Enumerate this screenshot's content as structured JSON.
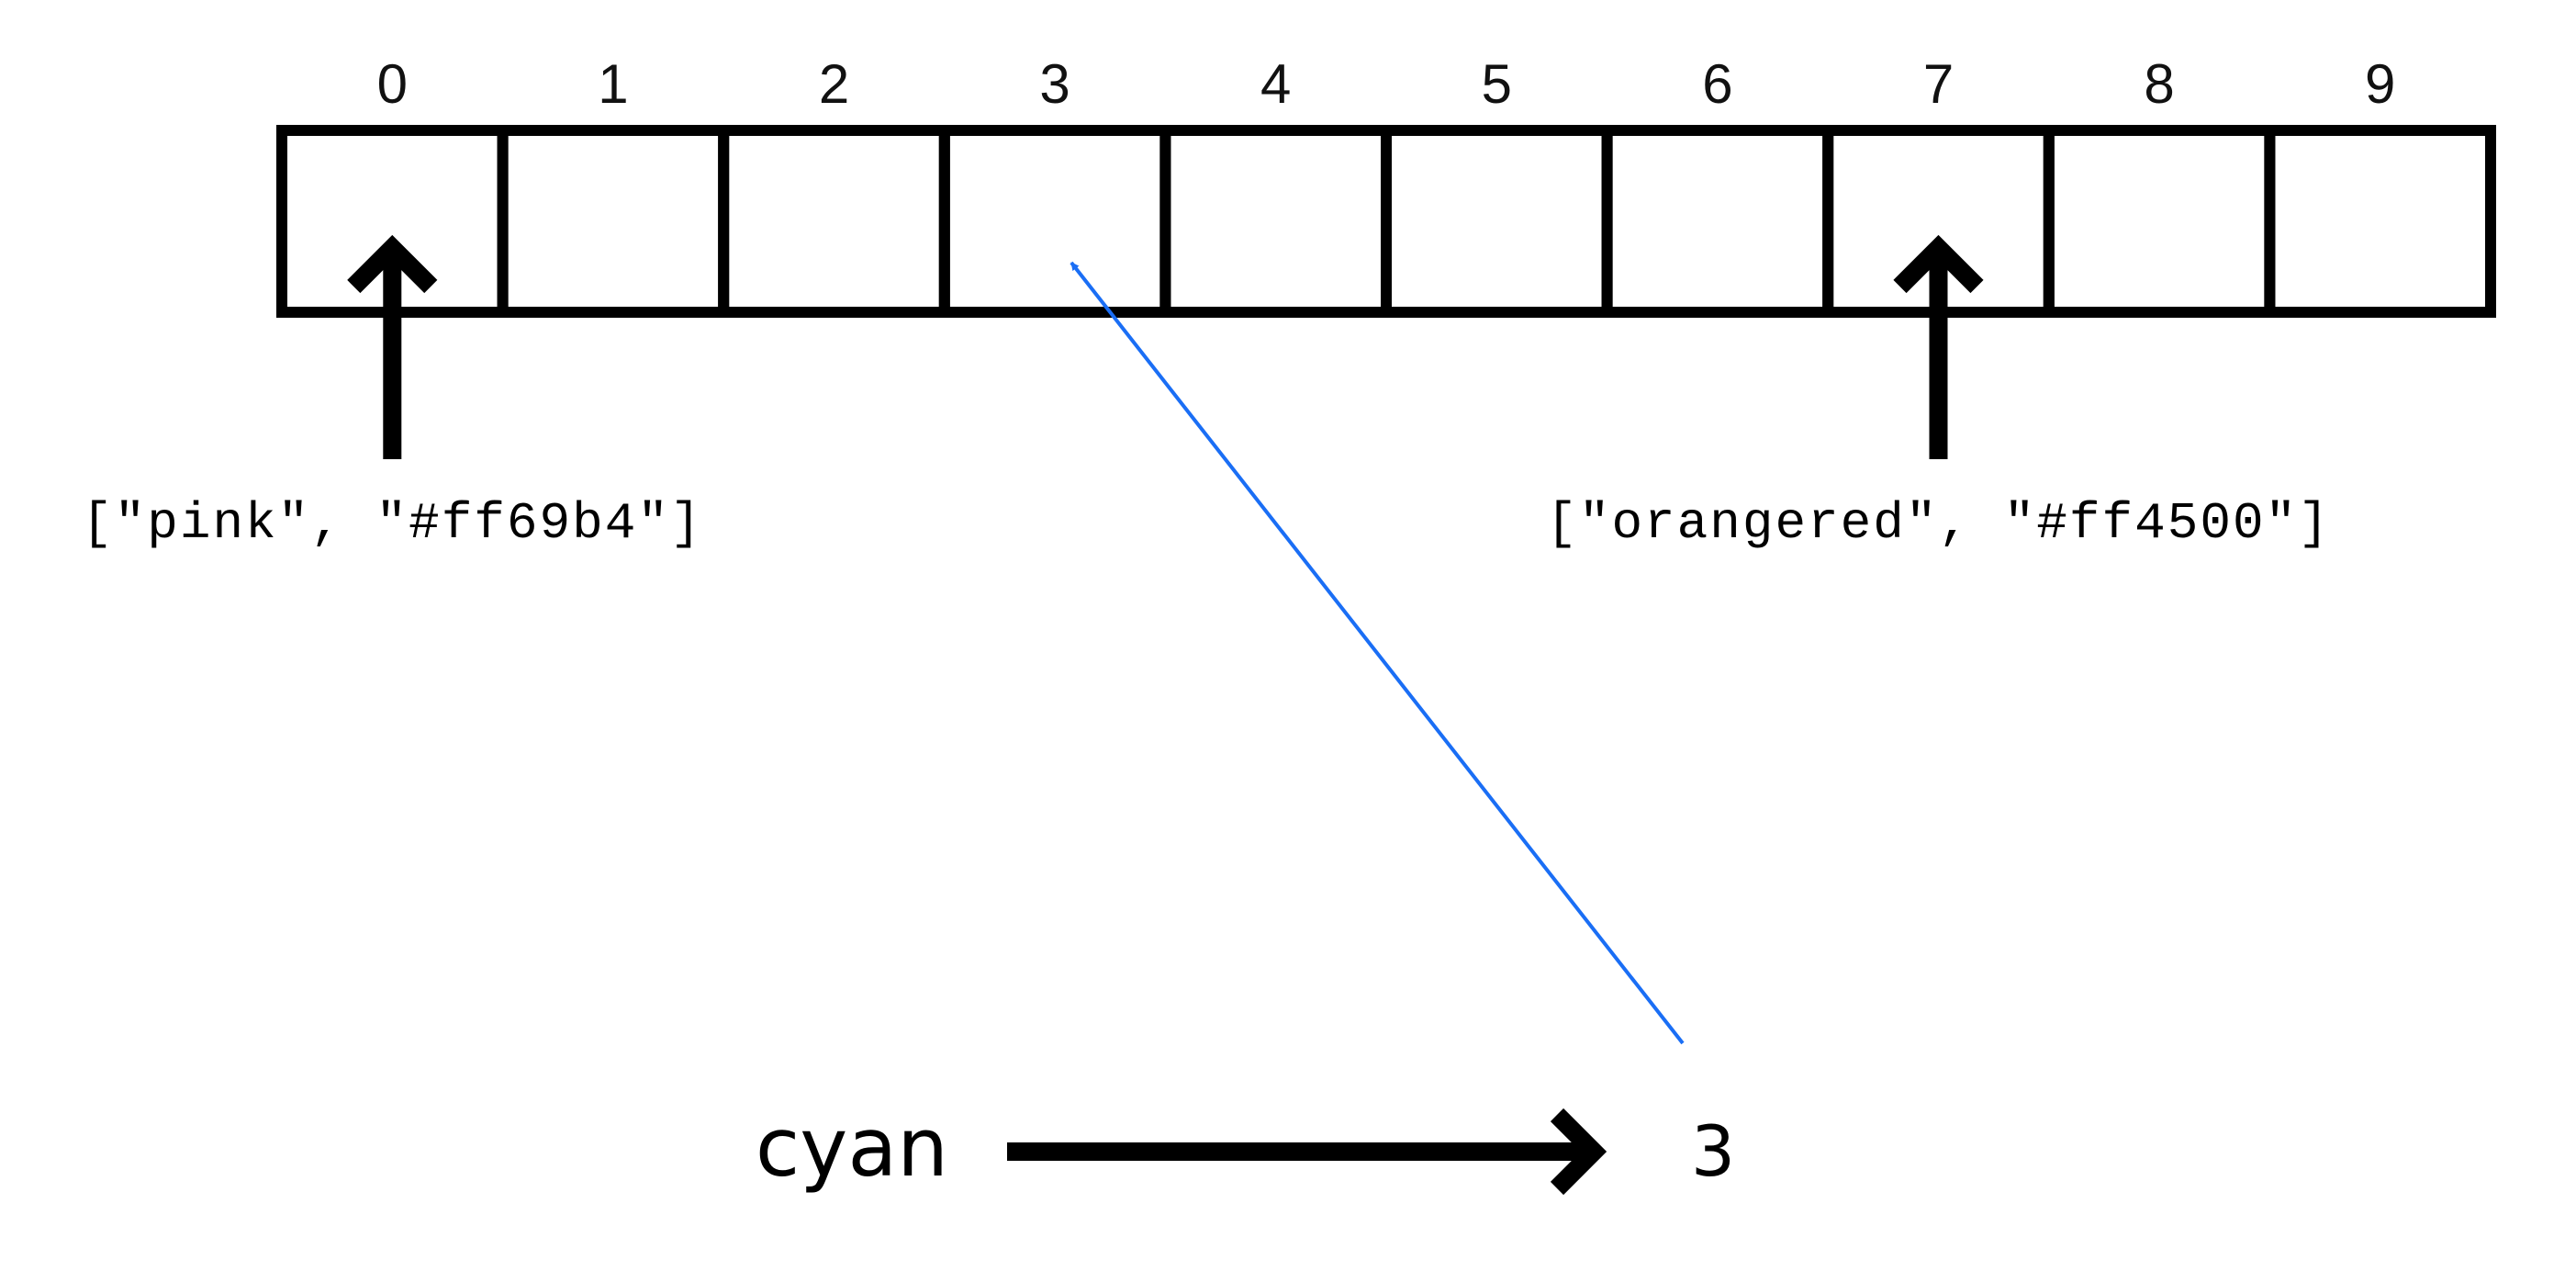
{
  "array": {
    "indices": [
      "0",
      "1",
      "2",
      "3",
      "4",
      "5",
      "6",
      "7",
      "8",
      "9"
    ]
  },
  "pointers": [
    {
      "index": 0,
      "label": "[\"pink\", \"#ff69b4\"]"
    },
    {
      "index": 7,
      "label": "[\"orangered\", \"#ff4500\"]"
    }
  ],
  "mapping": {
    "key": "cyan",
    "value": "3",
    "target_index": 3,
    "link_color": "#1a6ef5"
  },
  "colors": {
    "stroke": "#000000",
    "background": "#ffffff"
  }
}
